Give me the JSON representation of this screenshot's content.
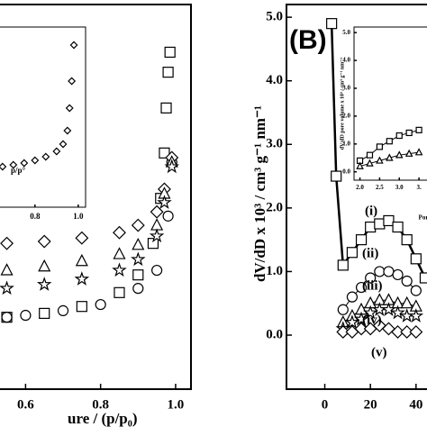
{
  "chart_data": [
    {
      "type": "scatter",
      "xlabel": "ure / (p/p₀)",
      "xlim": [
        0.527,
        1.041
      ],
      "ylim": [
        0,
        100
      ],
      "xticks": [
        0.6,
        0.8,
        {
          "value": 1,
          "label": "1.0"
        }
      ],
      "yticks": [],
      "series": [
        {
          "name": "squares",
          "marker": "square",
          "color": "#000000",
          "x": [
            0.55,
            0.65,
            0.75,
            0.85,
            0.9,
            0.94,
            0.96,
            0.97,
            0.975,
            0.98,
            0.985
          ],
          "values": [
            18.7,
            19.7,
            21.5,
            25.1,
            29.7,
            37.9,
            49.6,
            61.4,
            73.1,
            82.4,
            87.6
          ]
        },
        {
          "name": "circles",
          "marker": "circle",
          "color": "#000000",
          "x": [
            0.55,
            0.6,
            0.7,
            0.8,
            0.9,
            0.95,
            0.98,
            0.99
          ],
          "values": [
            18.7,
            19.2,
            20.4,
            22.0,
            26.2,
            30.9,
            45.0,
            59.0
          ]
        },
        {
          "name": "diamonds",
          "marker": "diamond",
          "color": "#000000",
          "x": [
            0.55,
            0.65,
            0.75,
            0.85,
            0.9,
            0.95,
            0.97,
            0.99
          ],
          "values": [
            37.9,
            38.4,
            39.3,
            40.7,
            42.6,
            46.1,
            52.0,
            60.2
          ]
        },
        {
          "name": "triangles",
          "marker": "triangle",
          "color": "#000000",
          "x": [
            0.55,
            0.65,
            0.75,
            0.85,
            0.9,
            0.95,
            0.97,
            0.99
          ],
          "values": [
            30.9,
            31.9,
            33.3,
            35.1,
            37.5,
            42.6,
            50.8,
            59.0
          ]
        },
        {
          "name": "stars",
          "marker": "star",
          "color": "#000000",
          "x": [
            0.55,
            0.65,
            0.75,
            0.85,
            0.9,
            0.95,
            0.97,
            0.99
          ],
          "values": [
            26.2,
            27.2,
            28.6,
            30.9,
            33.7,
            39.8,
            48.5,
            57.8
          ]
        }
      ]
    },
    {
      "type": "scatter",
      "xlabel": "p/p°",
      "xlim": [
        0.63,
        1.034
      ],
      "ylim": [
        0,
        100
      ],
      "xticks": [
        0.8,
        {
          "value": 1,
          "label": "1.0"
        }
      ],
      "yticks": [],
      "series": [
        {
          "name": "inset",
          "marker": "diamond",
          "color": "#000000",
          "x": [
            0.65,
            0.7,
            0.75,
            0.8,
            0.85,
            0.9,
            0.93,
            0.95,
            0.96,
            0.97,
            0.98
          ],
          "values": [
            22.5,
            23.5,
            24.5,
            26,
            28,
            31,
            35,
            42.5,
            55,
            70,
            90
          ]
        }
      ]
    },
    {
      "type": "line",
      "panel_label": "(B)",
      "ylabel": "dV/dD x 10³ / cm³ g⁻¹ nm⁻¹",
      "xlim": [
        -16.8,
        45.6
      ],
      "ylim": [
        -0.85,
        5.2
      ],
      "xticks": [
        0,
        20,
        40
      ],
      "yticks": [
        {
          "value": 0,
          "label": "0.0"
        },
        {
          "value": 1,
          "label": "1.0"
        },
        {
          "value": 2,
          "label": "2.0"
        },
        {
          "value": 3,
          "label": "3.0"
        },
        {
          "value": 4,
          "label": "4.0"
        },
        {
          "value": 5,
          "label": "5.0"
        }
      ],
      "annotations": [
        "(i)",
        "(ii)",
        "(iii)",
        "(iv)",
        "(v)"
      ],
      "series": [
        {
          "name": "(i)",
          "marker": "square",
          "color": "#000000",
          "x": [
            3,
            5,
            8,
            12,
            16,
            20,
            24,
            28,
            32,
            36,
            40,
            44
          ],
          "values": [
            4.9,
            2.5,
            1.1,
            1.3,
            1.5,
            1.7,
            1.75,
            1.8,
            1.7,
            1.5,
            1.2,
            0.9
          ]
        },
        {
          "name": "(ii)",
          "marker": "circle",
          "color": "#000000",
          "x": [
            8,
            12,
            16,
            20,
            24,
            28,
            32,
            36,
            40
          ],
          "values": [
            0.4,
            0.6,
            0.75,
            0.9,
            1.0,
            1.0,
            0.95,
            0.85,
            0.7
          ]
        },
        {
          "name": "(iii)",
          "marker": "triangle",
          "color": "#000000",
          "x": [
            8,
            12,
            16,
            20,
            24,
            28,
            32,
            36,
            40
          ],
          "values": [
            0.2,
            0.3,
            0.4,
            0.5,
            0.55,
            0.55,
            0.5,
            0.5,
            0.45
          ]
        },
        {
          "name": "(iv)",
          "marker": "star",
          "color": "#000000",
          "x": [
            8,
            12,
            16,
            20,
            24,
            28,
            32,
            36,
            40
          ],
          "values": [
            0.1,
            0.2,
            0.25,
            0.35,
            0.4,
            0.4,
            0.35,
            0.3,
            0.3
          ]
        },
        {
          "name": "(v)",
          "marker": "diamond",
          "color": "#000000",
          "x": [
            8,
            12,
            16,
            20,
            24,
            28,
            32,
            36,
            40
          ],
          "values": [
            0.05,
            0.05,
            0.1,
            0.1,
            0.15,
            0.1,
            0.05,
            0.05,
            0.05
          ]
        }
      ]
    },
    {
      "type": "line",
      "xlabel": "Por",
      "ylabel": "dV/dD pore volume x 10³ / cm³ g⁻¹ nm⁻¹",
      "xlim": [
        1.85,
        3.75
      ],
      "ylim": [
        -0.3,
        5.2
      ],
      "xticks": [
        {
          "value": 2,
          "label": "2.0"
        },
        2.5,
        {
          "value": 3,
          "label": "3.0"
        },
        {
          "value": 3.5,
          "label": "3."
        }
      ],
      "yticks": [
        {
          "value": 0,
          "label": "0.0"
        },
        {
          "value": 1,
          "label": "1.0"
        },
        {
          "value": 2,
          "label": "2.0"
        },
        {
          "value": 3,
          "label": "3.0"
        },
        {
          "value": 4,
          "label": "4.0"
        },
        {
          "value": 5,
          "label": "5.0"
        }
      ],
      "series": [
        {
          "name": "inset-a",
          "marker": "square",
          "color": "#000000",
          "x": [
            2.0,
            2.25,
            2.5,
            2.75,
            3.0,
            3.25,
            3.5
          ],
          "values": [
            0.4,
            0.6,
            0.9,
            1.1,
            1.3,
            1.4,
            1.5
          ]
        },
        {
          "name": "inset-b",
          "marker": "triangle",
          "color": "#000000",
          "x": [
            2.0,
            2.25,
            2.5,
            2.75,
            3.0,
            3.25,
            3.5
          ],
          "values": [
            0.2,
            0.3,
            0.4,
            0.5,
            0.6,
            0.65,
            0.7
          ]
        }
      ]
    }
  ]
}
